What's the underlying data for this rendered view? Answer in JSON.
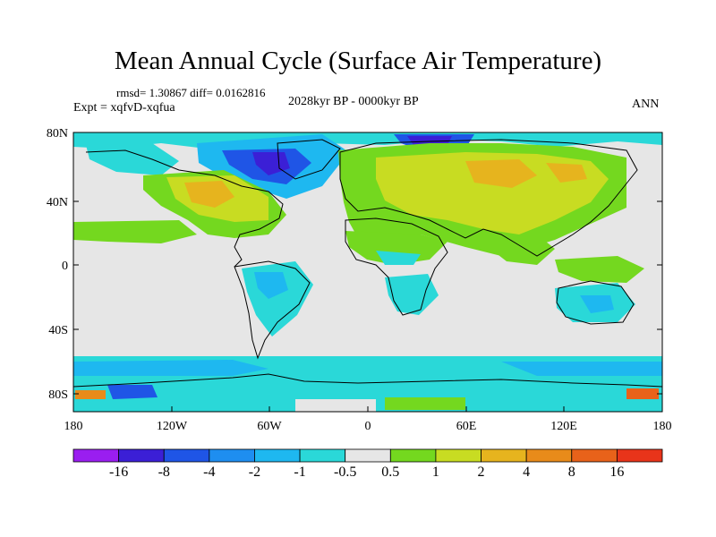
{
  "header": {
    "title": "Mean Annual Cycle (Surface Air Temperature)",
    "stats": "rmsd= 1.30867 diff= 0.0162816",
    "experiment": "Expt = xqfvD-xqfua",
    "period": "2028kyr BP - 0000kyr BP",
    "season": "ANN"
  },
  "map": {
    "lat_labels": [
      "80N",
      "40N",
      "0",
      "40S",
      "80S"
    ],
    "lon_labels": [
      "180",
      "120W",
      "60W",
      "0",
      "60E",
      "120E",
      "180"
    ],
    "colors": {
      "ocean_neutral": "#e6e6e6",
      "coastline": "#000000"
    }
  },
  "colorbar": {
    "labels": [
      "-16",
      "-8",
      "-4",
      "-2",
      "-1",
      "-0.5",
      "0.5",
      "1",
      "2",
      "4",
      "8",
      "16"
    ],
    "colors": [
      "#9a1ef0",
      "#3b1fd6",
      "#1f55e6",
      "#1e8ef0",
      "#1eb8f0",
      "#2ad8d8",
      "#e6e6e6",
      "#74d81f",
      "#c8dc22",
      "#e6b41e",
      "#e88b1a",
      "#e8621a",
      "#e8341a"
    ]
  }
}
